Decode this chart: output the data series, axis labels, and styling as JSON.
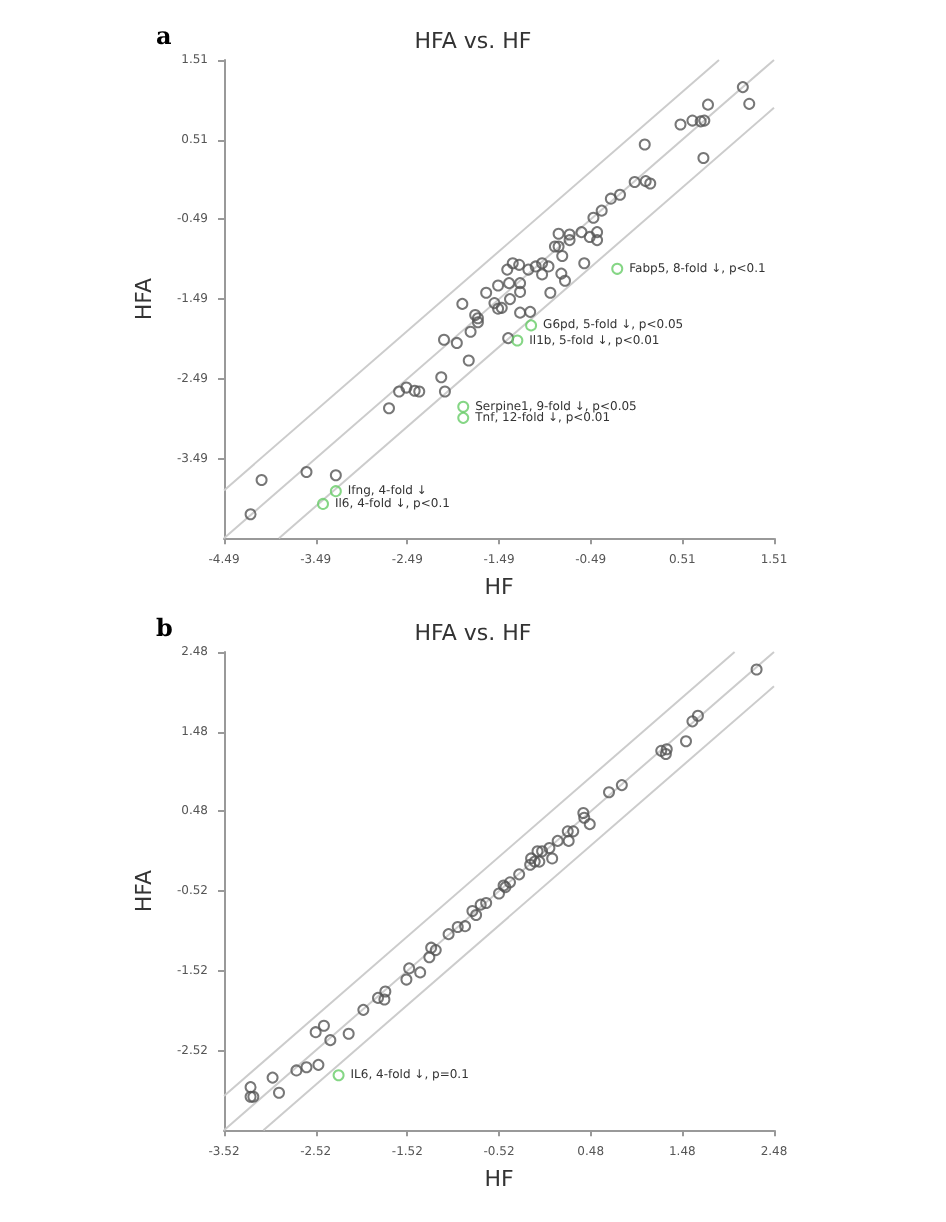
{
  "chart_data": [
    {
      "type": "scatter",
      "title": "HFA vs. HF",
      "xlabel": "HF",
      "ylabel": "HFA",
      "xlim": [
        -4.49,
        1.51
      ],
      "ylim": [
        -4.49,
        1.51
      ],
      "xticks": [
        -4.49,
        -3.49,
        -2.49,
        -1.49,
        -0.49,
        0.51,
        1.51
      ],
      "yticks": [
        -3.49,
        -2.49,
        -1.49,
        -0.49,
        0.51,
        1.51
      ],
      "marker": "circle",
      "grid": false,
      "series": [
        {
          "type": "line",
          "marker": "none",
          "color": "#cccccc",
          "x": [
            -4.49,
            0.91
          ],
          "values": [
            -3.89,
            1.51
          ]
        },
        {
          "type": "line",
          "marker": "none",
          "color": "#cccccc",
          "x": [
            -4.49,
            1.51
          ],
          "values": [
            -4.49,
            1.51
          ]
        },
        {
          "type": "line",
          "marker": "none",
          "color": "#cccccc",
          "x": [
            -3.89,
            1.51
          ],
          "values": [
            -4.49,
            0.91
          ]
        },
        {
          "color": "#555555",
          "x": [
            1.17,
            1.24,
            0.79,
            0.49,
            0.62,
            0.71,
            0.75,
            0.74,
            0.1,
            -0.01,
            0.11,
            0.16,
            -0.17,
            -0.27,
            -0.37,
            -0.46,
            -0.59,
            -0.5,
            -0.42,
            -0.42,
            -0.56,
            -0.72,
            -0.72,
            -0.84,
            -0.84,
            -0.88,
            -0.8,
            -0.95,
            -1.02,
            -1.09,
            -1.17,
            -1.27,
            -1.34,
            -1.4,
            -1.02,
            -0.81,
            -0.77,
            -0.93,
            -1.26,
            -1.38,
            -1.5,
            -1.63,
            -1.26,
            -1.89,
            -1.54,
            -1.46,
            -1.5,
            -1.37,
            -1.26,
            -1.15,
            -1.72,
            -1.75,
            -1.72,
            -1.8,
            -2.09,
            -1.95,
            -1.39,
            -1.82,
            -2.12,
            -2.08,
            -2.5,
            -2.58,
            -2.41,
            -2.36,
            -2.69,
            -3.27,
            -3.59,
            -4.08,
            -4.2
          ],
          "values": [
            1.17,
            0.96,
            0.95,
            0.7,
            0.75,
            0.74,
            0.75,
            0.28,
            0.45,
            -0.02,
            -0.01,
            -0.04,
            -0.18,
            -0.23,
            -0.38,
            -0.47,
            -0.65,
            -0.71,
            -0.65,
            -0.75,
            -1.04,
            -0.68,
            -0.75,
            -0.67,
            -0.83,
            -0.83,
            -0.95,
            -1.08,
            -1.04,
            -1.08,
            -1.12,
            -1.06,
            -1.04,
            -1.12,
            -1.18,
            -1.17,
            -1.26,
            -1.41,
            -1.29,
            -1.29,
            -1.32,
            -1.41,
            -1.4,
            -1.55,
            -1.54,
            -1.6,
            -1.61,
            -1.49,
            -1.66,
            -1.65,
            -1.73,
            -1.69,
            -1.78,
            -1.9,
            -2.0,
            -2.04,
            -1.98,
            -2.26,
            -2.47,
            -2.65,
            -2.6,
            -2.65,
            -2.64,
            -2.65,
            -2.86,
            -3.7,
            -3.66,
            -3.76,
            -4.19
          ]
        },
        {
          "color": "#66cc66",
          "x": [
            -0.2,
            -1.14,
            -1.29,
            -1.88,
            -1.88,
            -3.27,
            -3.41
          ],
          "values": [
            -1.11,
            -1.82,
            -2.01,
            -2.84,
            -2.98,
            -3.9,
            -4.06
          ]
        }
      ],
      "annotations": [
        "a",
        {
          "text": "Fabp5, 8-fold ↓, p<0.1",
          "x": -0.2,
          "y": -1.11
        },
        {
          "text": "G6pd, 5-fold ↓, p<0.05",
          "x": -1.14,
          "y": -1.82
        },
        {
          "text": "Il1b, 5-fold ↓, p<0.01",
          "x": -1.29,
          "y": -2.01
        },
        {
          "text": "Serpine1, 9-fold ↓, p<0.05",
          "x": -1.88,
          "y": -2.84
        },
        {
          "text": "Tnf, 12-fold ↓, p<0.01",
          "x": -1.88,
          "y": -2.98
        },
        {
          "text": "Ifng, 4-fold ↓",
          "x": -3.27,
          "y": -3.9
        },
        {
          "text": "Il6, 4-fold ↓, p<0.1",
          "x": -3.41,
          "y": -4.06
        }
      ]
    },
    {
      "type": "scatter",
      "title": "HFA vs. HF",
      "xlabel": "HF",
      "ylabel": "HFA",
      "xlim": [
        -3.52,
        2.48
      ],
      "ylim": [
        -3.52,
        2.48
      ],
      "xticks": [
        -3.52,
        -2.52,
        -1.52,
        -0.52,
        0.48,
        1.48,
        2.48
      ],
      "yticks": [
        -2.52,
        -1.52,
        -0.52,
        0.48,
        1.48,
        2.48
      ],
      "marker": "circle",
      "grid": false,
      "series": [
        {
          "type": "line",
          "marker": "none",
          "color": "#cccccc",
          "x": [
            -3.52,
            2.05
          ],
          "values": [
            -3.09,
            2.48
          ]
        },
        {
          "type": "line",
          "marker": "none",
          "color": "#cccccc",
          "x": [
            -3.52,
            2.48
          ],
          "values": [
            -3.52,
            2.48
          ]
        },
        {
          "type": "line",
          "marker": "none",
          "color": "#cccccc",
          "x": [
            -3.09,
            2.48
          ],
          "values": [
            -3.52,
            2.05
          ]
        },
        {
          "color": "#555555",
          "x": [
            2.29,
            1.65,
            1.59,
            1.52,
            1.25,
            1.31,
            1.3,
            0.82,
            0.68,
            0.4,
            0.41,
            0.47,
            0.23,
            0.29,
            0.24,
            0.12,
            0.03,
            -0.05,
            -0.1,
            0.06,
            -0.17,
            -0.13,
            -0.08,
            -0.18,
            -0.3,
            -0.4,
            -0.47,
            -0.52,
            -0.45,
            -0.66,
            -0.72,
            -0.77,
            -0.81,
            -0.89,
            -0.97,
            -1.07,
            -1.26,
            -1.28,
            -1.21,
            -1.5,
            -1.53,
            -1.38,
            -1.76,
            -1.84,
            -1.77,
            -2.0,
            -2.16,
            -2.43,
            -2.52,
            -2.36,
            -2.49,
            -2.62,
            -2.73,
            -2.99,
            -2.92,
            -3.23,
            -3.23,
            -3.2
          ],
          "values": [
            2.26,
            1.68,
            1.61,
            1.36,
            1.24,
            1.26,
            1.2,
            0.81,
            0.72,
            0.46,
            0.4,
            0.32,
            0.23,
            0.23,
            0.11,
            0.11,
            0.02,
            -0.02,
            -0.02,
            -0.11,
            -0.11,
            -0.15,
            -0.15,
            -0.19,
            -0.31,
            -0.41,
            -0.45,
            -0.55,
            -0.47,
            -0.67,
            -0.69,
            -0.82,
            -0.77,
            -0.96,
            -0.97,
            -1.06,
            -1.23,
            -1.35,
            -1.26,
            -1.49,
            -1.63,
            -1.54,
            -1.78,
            -1.86,
            -1.88,
            -2.01,
            -2.31,
            -2.21,
            -2.29,
            -2.39,
            -2.7,
            -2.73,
            -2.77,
            -2.86,
            -3.05,
            -2.98,
            -3.1,
            -3.1
          ]
        },
        {
          "color": "#66cc66",
          "x": [
            -2.27
          ],
          "values": [
            -2.83
          ]
        }
      ],
      "annotations": [
        "b",
        {
          "text": "IL6, 4-fold ↓, p=0.1",
          "x": -2.27,
          "y": -2.83
        }
      ]
    }
  ]
}
